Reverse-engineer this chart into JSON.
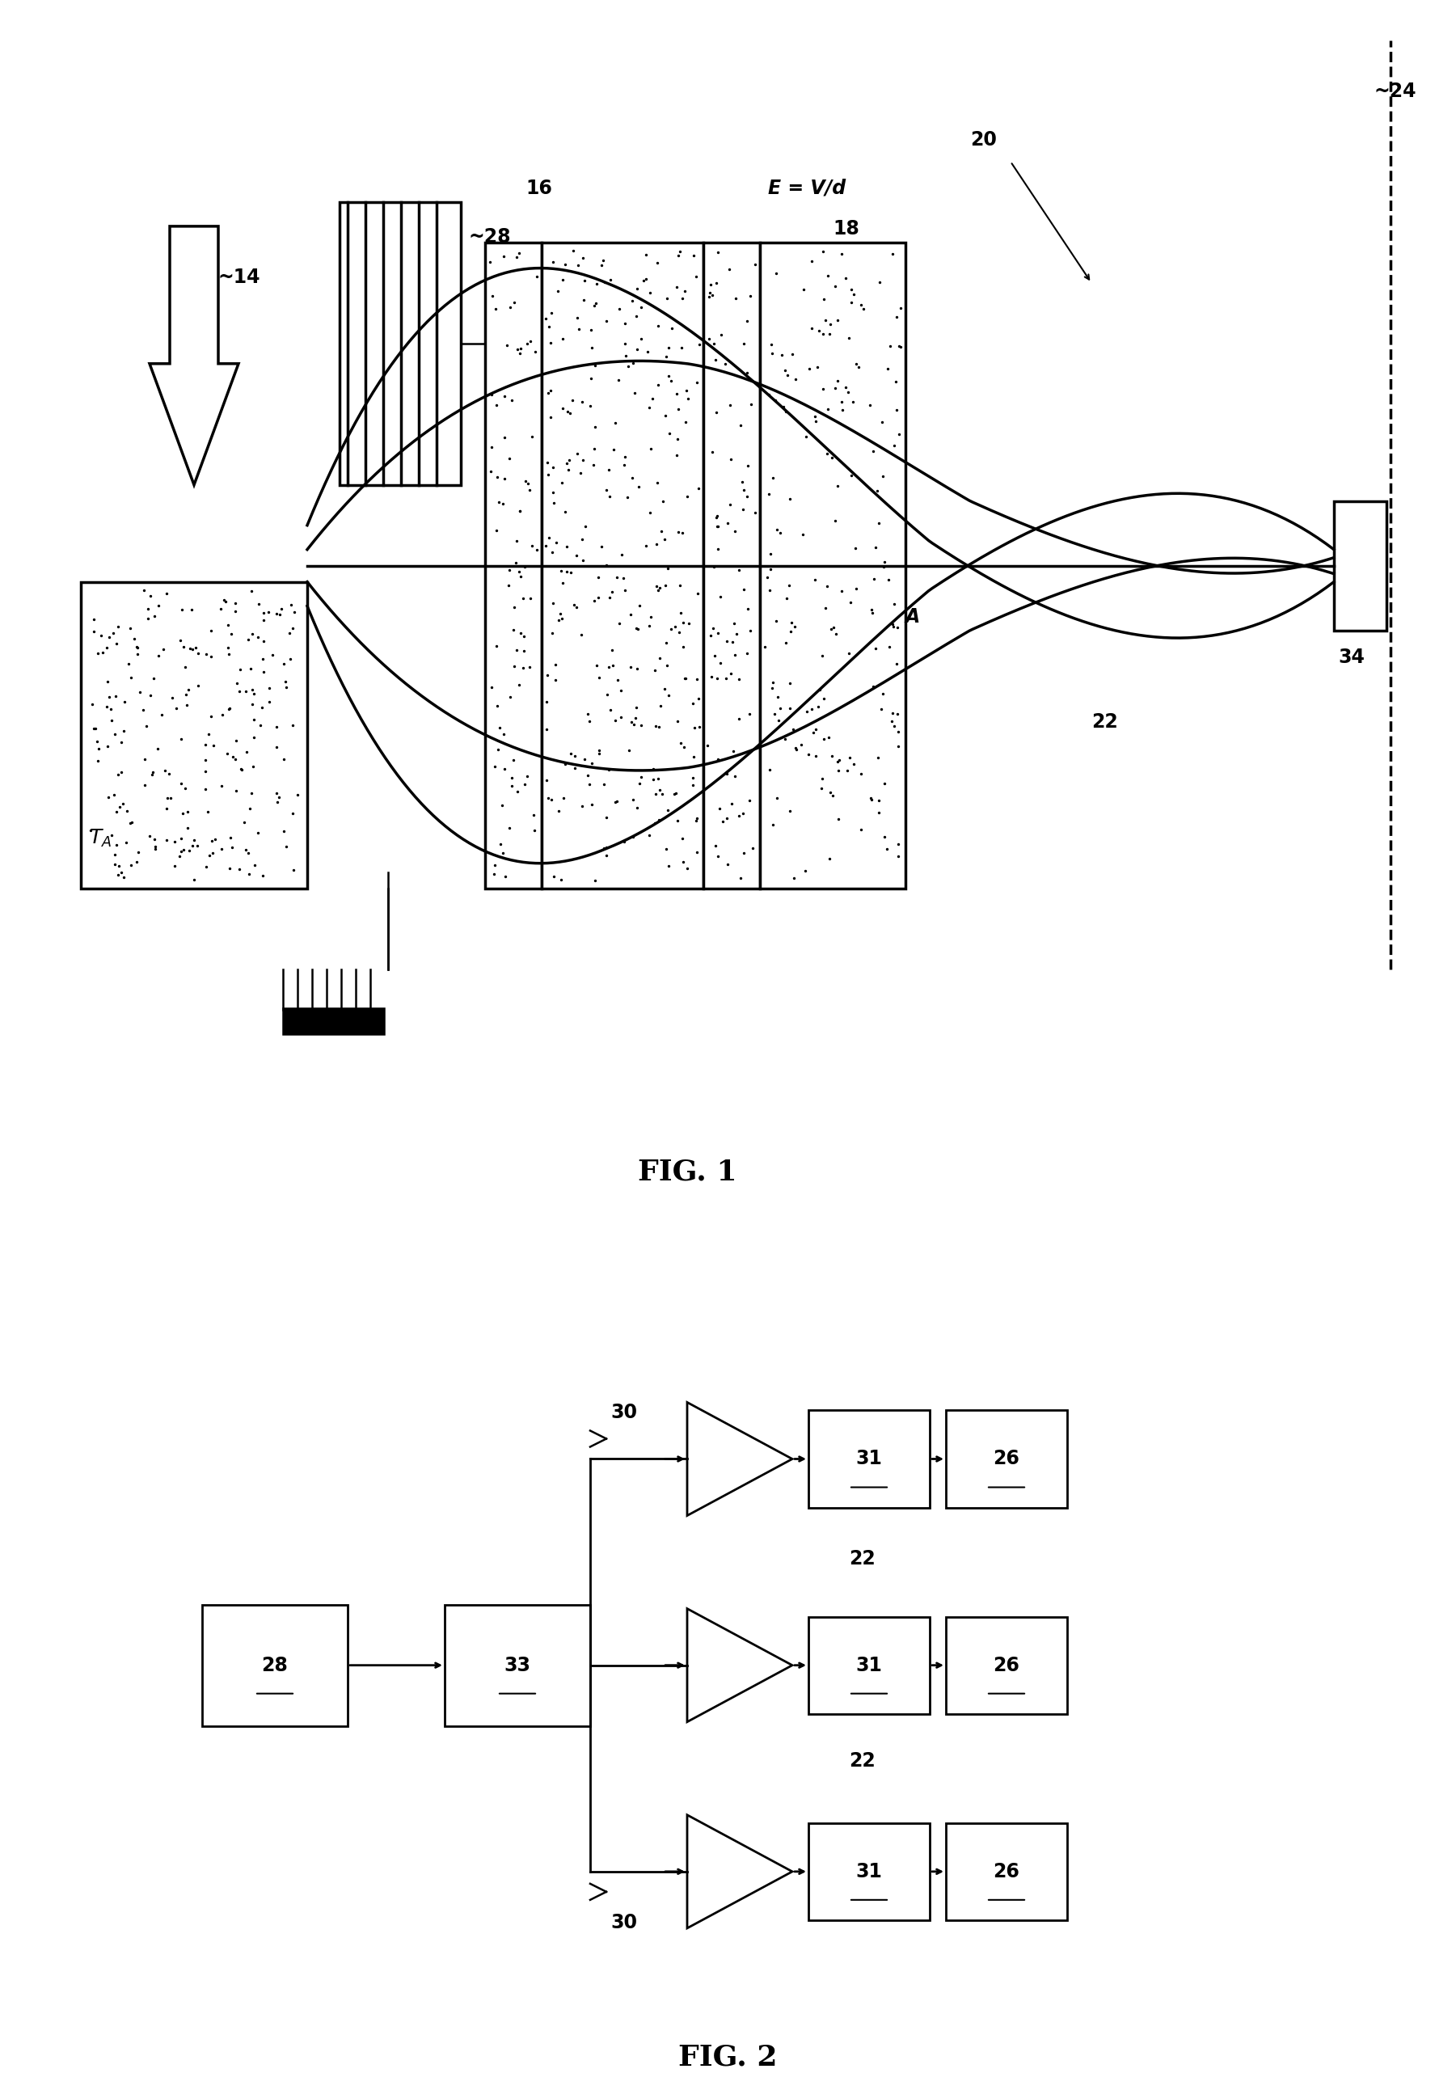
{
  "fig_width": 18.01,
  "fig_height": 25.85,
  "bg_color": "#ffffff",
  "fig1_caption": "FIG. 1",
  "fig2_caption": "FIG. 2"
}
